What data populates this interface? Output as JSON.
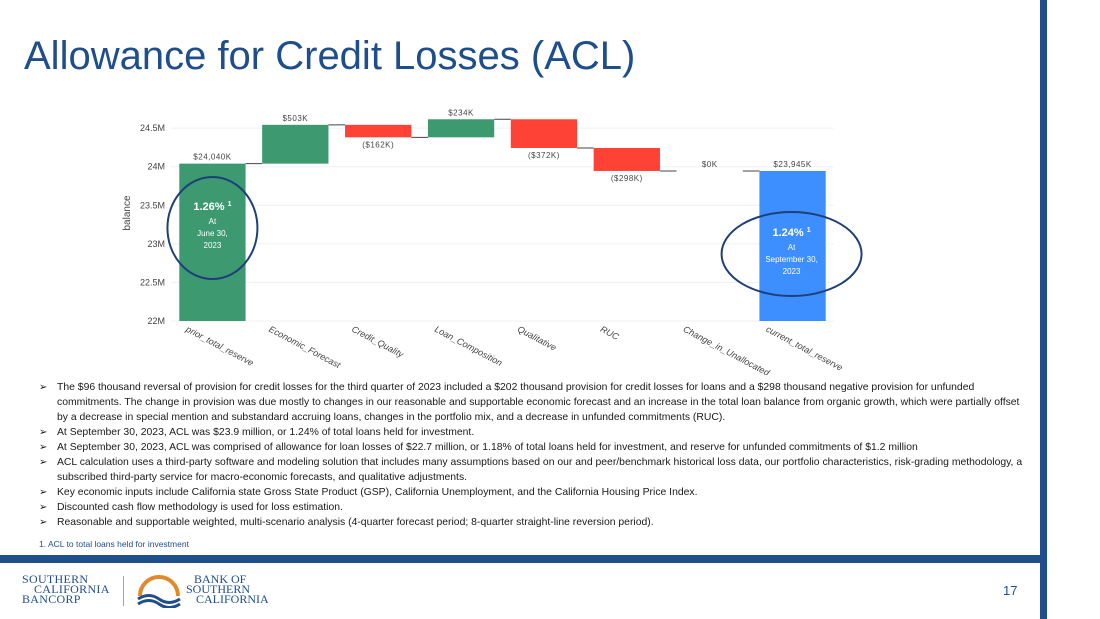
{
  "title": "Allowance for Credit Losses (ACL)",
  "chart_data": {
    "type": "bar",
    "variant": "waterfall",
    "ylabel": "balance",
    "ylim": [
      22000000,
      24800000
    ],
    "yticks": [
      22000000,
      22500000,
      23000000,
      23500000,
      24000000,
      24500000
    ],
    "ytick_labels": [
      "22M",
      "22.5M",
      "23M",
      "23.5M",
      "24M",
      "24.5M"
    ],
    "categories": [
      "prior_total_reserve",
      "Economic_Forecast",
      "Credit_Quality",
      "Loan_Composition",
      "Qualitative",
      "RUC",
      "Change_in_Unallocated",
      "current_total_reserve"
    ],
    "values": [
      24040000,
      503000,
      -162000,
      234000,
      -372000,
      -298000,
      0,
      23945000
    ],
    "measures": [
      "total",
      "relative",
      "relative",
      "relative",
      "relative",
      "relative",
      "relative",
      "total"
    ],
    "data_labels": [
      "$24,040K",
      "$503K",
      "($162K)",
      "$234K",
      "($372K)",
      "($298K)",
      "$0K",
      "$23,945K"
    ],
    "colors": {
      "start": "#3d9970",
      "increase": "#3d9970",
      "decrease": "#ff4136",
      "end": "#3d8eff"
    },
    "annotations": [
      {
        "pct": "1.26%",
        "sup": "1",
        "line1": "At",
        "line2": "June 30,",
        "line3": "2023",
        "anchor": "prior_total_reserve"
      },
      {
        "pct": "1.24%",
        "sup": "1",
        "line1": "At",
        "line2": "September 30,",
        "line3": "2023",
        "anchor": "current_total_reserve"
      }
    ]
  },
  "bullets": [
    "The $96 thousand reversal of provision for credit losses for the third quarter of 2023 included a $202 thousand provision for credit losses for loans and a $298 thousand negative provision for unfunded commitments.  The change in provision was due mostly to changes in our reasonable and supportable economic forecast and an increase in the total loan balance from organic growth, which were partially offset by a decrease in special mention and substandard accruing loans, changes in the portfolio mix, and a decrease in unfunded commitments (RUC).",
    "At September 30, 2023, ACL was $23.9 million, or 1.24% of total loans held for investment.",
    "At September 30, 2023,  ACL was comprised of allowance for loan losses of $22.7 million, or 1.18% of total loans held for investment, and reserve for unfunded commitments of $1.2 million",
    "ACL calculation uses a third-party software and modeling solution that includes many assumptions based on our and peer/benchmark historical loss data, our portfolio characteristics, risk-grading methodology, a subscribed third-party service for macro-economic forecasts, and qualitative adjustments.",
    "Key economic inputs include California state Gross State Product (GSP), California Unemployment, and the California Housing Price Index.",
    "Discounted cash flow methodology is used for loss estimation.",
    "Reasonable and supportable weighted, multi-scenario analysis (4-quarter forecast period; 8-quarter straight-line reversion period)."
  ],
  "bullet_marker": "➢",
  "footnote": "1.  ACL to total loans held for investment",
  "page_number": "17",
  "logo_left": {
    "line1": "SOUTHERN",
    "line2": "CALIFORNIA",
    "line3": "BANCORP"
  },
  "logo_right": {
    "line1": "BANK OF",
    "line2": "SOUTHERN",
    "line3": "CALIFORNIA"
  },
  "brand_color": "#1f4e8c"
}
